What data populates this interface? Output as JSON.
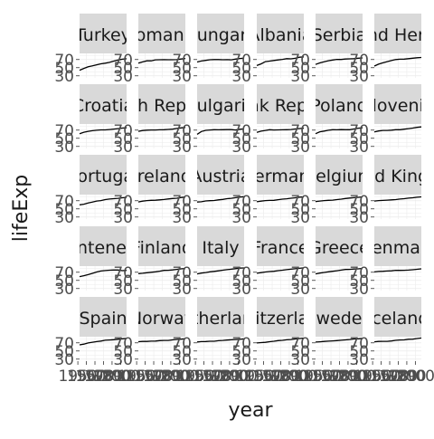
{
  "chart_data": {
    "type": "line",
    "facet": "small-multiples",
    "xlabel": "year",
    "ylabel": "lifeExp",
    "x_tick_labels": [
      "1950",
      "1960",
      "1970",
      "1980",
      "1990",
      "2000"
    ],
    "y_tick_labels": [
      "30",
      "50",
      "70"
    ],
    "xlim": [
      1952,
      2007
    ],
    "ylim": [
      25,
      85
    ],
    "grid": "on",
    "years": [
      1952,
      1957,
      1962,
      1967,
      1972,
      1977,
      1982,
      1987,
      1992,
      1997,
      2002,
      2007
    ],
    "panels": [
      {
        "label": "Turkey",
        "values": [
          43.6,
          48.1,
          52.1,
          54.3,
          57.0,
          59.5,
          61.0,
          63.1,
          66.1,
          68.8,
          70.8,
          71.8
        ]
      },
      {
        "label": "Romania",
        "values": [
          61.1,
          64.1,
          66.8,
          66.8,
          69.2,
          69.5,
          69.7,
          69.5,
          69.4,
          69.7,
          71.3,
          72.5
        ]
      },
      {
        "label": "Hungary",
        "values": [
          64.0,
          66.4,
          68.0,
          69.5,
          69.8,
          70.0,
          69.4,
          69.6,
          69.2,
          71.0,
          72.6,
          73.3
        ]
      },
      {
        "label": "Albania",
        "values": [
          55.2,
          59.3,
          64.8,
          66.2,
          67.7,
          68.9,
          70.4,
          72.0,
          71.6,
          73.0,
          75.7,
          76.4
        ]
      },
      {
        "label": "Serbia",
        "values": [
          58.0,
          61.7,
          64.5,
          66.9,
          68.7,
          70.3,
          70.2,
          71.2,
          71.7,
          72.2,
          73.2,
          74.0
        ]
      },
      {
        "label": "Bosnia and Herzegovina",
        "values": [
          53.8,
          58.5,
          61.9,
          64.8,
          67.5,
          69.9,
          70.7,
          71.1,
          72.2,
          73.2,
          74.3,
          74.9
        ]
      },
      {
        "label": "Croatia",
        "values": [
          61.2,
          64.8,
          67.1,
          68.5,
          69.6,
          70.6,
          70.5,
          71.5,
          72.5,
          73.7,
          74.9,
          75.7
        ]
      },
      {
        "label": "Czech Republic",
        "values": [
          66.9,
          69.0,
          69.9,
          70.4,
          70.3,
          70.7,
          71.0,
          71.6,
          72.4,
          74.0,
          75.5,
          76.5
        ]
      },
      {
        "label": "Bulgaria",
        "values": [
          59.6,
          66.6,
          69.5,
          70.4,
          70.9,
          70.8,
          71.1,
          71.3,
          71.2,
          70.3,
          72.1,
          73.0
        ]
      },
      {
        "label": "Slovak Republic",
        "values": [
          64.4,
          67.5,
          69.2,
          71.0,
          70.3,
          70.5,
          70.8,
          71.1,
          71.4,
          72.7,
          73.8,
          74.7
        ]
      },
      {
        "label": "Poland",
        "values": [
          61.3,
          65.8,
          67.6,
          69.6,
          70.9,
          70.7,
          71.3,
          71.0,
          71.0,
          72.8,
          74.7,
          75.6
        ]
      },
      {
        "label": "Slovenia",
        "values": [
          65.6,
          67.9,
          69.2,
          69.2,
          69.8,
          70.97,
          71.1,
          72.3,
          73.6,
          75.1,
          76.7,
          77.9
        ]
      },
      {
        "label": "Portugal",
        "values": [
          59.8,
          61.5,
          64.4,
          66.6,
          69.3,
          70.4,
          72.8,
          74.1,
          74.9,
          76.0,
          77.3,
          78.1
        ]
      },
      {
        "label": "Ireland",
        "values": [
          66.9,
          68.9,
          70.3,
          71.1,
          71.3,
          72.0,
          73.1,
          74.4,
          75.5,
          76.1,
          77.8,
          78.9
        ]
      },
      {
        "label": "Austria",
        "values": [
          66.8,
          67.5,
          69.5,
          70.1,
          70.6,
          72.2,
          73.2,
          74.9,
          76.0,
          77.5,
          78.98,
          79.8
        ]
      },
      {
        "label": "Germany",
        "values": [
          67.5,
          69.1,
          70.3,
          70.8,
          71.0,
          72.5,
          73.8,
          74.8,
          76.1,
          77.3,
          78.7,
          79.4
        ]
      },
      {
        "label": "Belgium",
        "values": [
          68.0,
          69.2,
          70.3,
          70.9,
          71.4,
          72.8,
          73.9,
          75.4,
          76.5,
          77.5,
          78.3,
          79.4
        ]
      },
      {
        "label": "United Kingdom",
        "values": [
          69.2,
          70.4,
          70.8,
          71.4,
          72.0,
          72.8,
          74.0,
          75.0,
          76.4,
          77.2,
          78.5,
          79.4
        ]
      },
      {
        "label": "Montenegro",
        "values": [
          59.2,
          61.4,
          64.0,
          67.2,
          70.6,
          73.1,
          74.1,
          74.9,
          75.4,
          75.4,
          73.98,
          74.5
        ]
      },
      {
        "label": "Finland",
        "values": [
          66.6,
          67.5,
          68.8,
          69.8,
          70.9,
          72.5,
          74.6,
          74.8,
          75.7,
          77.1,
          78.4,
          79.3
        ]
      },
      {
        "label": "Italy",
        "values": [
          65.9,
          67.8,
          69.2,
          71.1,
          72.2,
          73.5,
          75.0,
          76.4,
          77.4,
          78.8,
          80.2,
          80.5
        ]
      },
      {
        "label": "France",
        "values": [
          67.4,
          68.9,
          70.5,
          71.6,
          72.4,
          73.8,
          74.9,
          76.3,
          77.5,
          78.6,
          79.6,
          80.7
        ]
      },
      {
        "label": "Greece",
        "values": [
          65.9,
          67.9,
          69.5,
          71.0,
          72.3,
          73.7,
          75.2,
          76.7,
          77.0,
          77.9,
          78.3,
          79.5
        ]
      },
      {
        "label": "Denmark",
        "values": [
          70.8,
          71.8,
          72.4,
          73.0,
          73.5,
          74.7,
          74.6,
          74.8,
          75.3,
          76.1,
          77.2,
          78.3
        ]
      },
      {
        "label": "Spain",
        "values": [
          64.9,
          66.7,
          69.7,
          71.4,
          73.1,
          74.4,
          76.3,
          76.9,
          77.6,
          78.8,
          79.8,
          80.9
        ]
      },
      {
        "label": "Norway",
        "values": [
          72.7,
          73.4,
          73.5,
          74.1,
          74.3,
          75.4,
          76.0,
          75.9,
          77.3,
          78.3,
          79.1,
          80.2
        ]
      },
      {
        "label": "Netherlands",
        "values": [
          72.1,
          73.0,
          73.2,
          73.8,
          73.8,
          75.2,
          76.0,
          76.8,
          77.4,
          78.0,
          78.5,
          79.8
        ]
      },
      {
        "label": "Switzerland",
        "values": [
          69.6,
          70.6,
          71.3,
          72.8,
          73.8,
          75.4,
          76.2,
          77.4,
          78.0,
          79.4,
          80.6,
          81.7
        ]
      },
      {
        "label": "Sweden",
        "values": [
          71.9,
          72.5,
          73.4,
          74.2,
          74.7,
          75.4,
          76.4,
          77.2,
          78.2,
          79.4,
          80.0,
          80.9
        ]
      },
      {
        "label": "Iceland",
        "values": [
          72.5,
          73.5,
          73.7,
          73.7,
          74.5,
          76.1,
          76.99,
          77.2,
          78.8,
          79.0,
          80.5,
          81.8
        ]
      }
    ]
  }
}
